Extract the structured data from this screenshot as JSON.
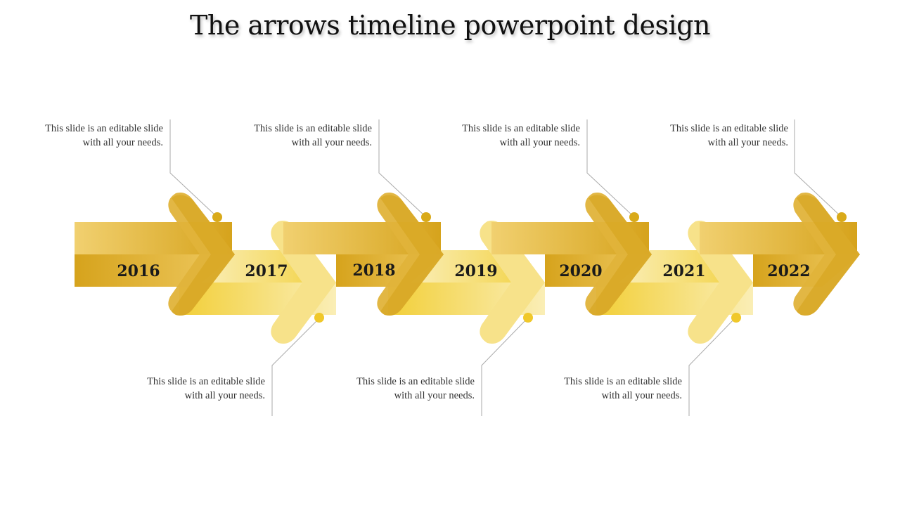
{
  "title": "The arrows timeline powerpoint design",
  "colors": {
    "gold_dark": "#d6a31c",
    "gold_mid": "#ecc65c",
    "yellow_bright": "#f2d03a",
    "yellow_light": "#f9ebaa",
    "dot": "#d9aa1a",
    "leader_line": "#aaaaaa"
  },
  "timeline": [
    {
      "year": "2016",
      "note": "This slide is an editable slide with all your needs."
    },
    {
      "year": "2017",
      "note": "This slide is an editable slide with all your needs."
    },
    {
      "year": "2018",
      "note": "This slide is an editable slide with all your needs."
    },
    {
      "year": "2019",
      "note": "This slide is an editable slide with all your needs."
    },
    {
      "year": "2020",
      "note": "This slide is an editable slide with all your needs."
    },
    {
      "year": "2021",
      "note": "This slide is an editable slide with all your needs."
    },
    {
      "year": "2022",
      "note": "This slide is an editable slide with all your needs."
    }
  ]
}
